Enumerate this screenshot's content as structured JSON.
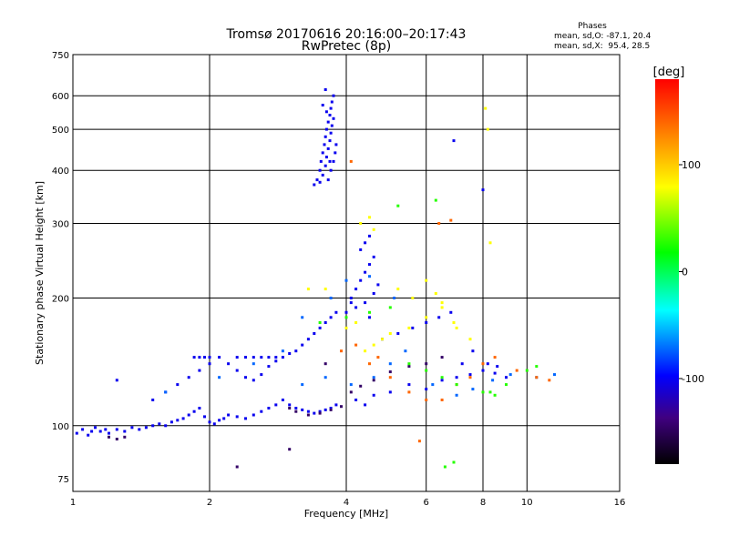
{
  "chart_data": {
    "type": "scatter",
    "title": "Tromsø 20170616 20:16:00–20:17:43",
    "subtitle": "RwPretec (8p)",
    "xlabel": "Frequency [MHz]",
    "ylabel": "Stationary phase Virtual Height [km]",
    "x_scale": "log",
    "y_scale": "log",
    "xlim": [
      1,
      16
    ],
    "ylim": [
      70,
      750
    ],
    "x_ticks": [
      1,
      2,
      4,
      6,
      8,
      10,
      16
    ],
    "y_ticks": [
      75,
      100,
      200,
      300,
      400,
      500,
      600,
      750
    ],
    "grid": true,
    "stats": {
      "heading": "Phases",
      "line_o": "mean, sd,O: -87.1, 20.4",
      "line_x": "mean, sd,X:  95.4, 28.5"
    },
    "colorbar": {
      "label": "[deg]",
      "range": [
        -180,
        180
      ],
      "ticks": [
        100,
        0,
        -100
      ],
      "colors": [
        "#ff0000",
        "#ff8000",
        "#ffff00",
        "#00ff00",
        "#00ffff",
        "#0000ff",
        "#400080",
        "#000000"
      ]
    },
    "series": [
      {
        "phase": -95,
        "points": [
          [
            1.02,
            96
          ],
          [
            1.05,
            98
          ],
          [
            1.08,
            95
          ],
          [
            1.1,
            97
          ],
          [
            1.12,
            99
          ],
          [
            1.15,
            97
          ],
          [
            1.18,
            98
          ],
          [
            1.2,
            96
          ],
          [
            1.25,
            98
          ],
          [
            1.3,
            97
          ],
          [
            1.35,
            99
          ],
          [
            1.4,
            98
          ],
          [
            1.45,
            99
          ],
          [
            1.5,
            100
          ],
          [
            1.55,
            101
          ],
          [
            1.6,
            100
          ],
          [
            1.65,
            102
          ],
          [
            1.7,
            103
          ],
          [
            1.75,
            104
          ],
          [
            1.8,
            106
          ],
          [
            1.85,
            108
          ],
          [
            1.9,
            110
          ],
          [
            1.95,
            105
          ],
          [
            2.0,
            102
          ],
          [
            2.05,
            101
          ],
          [
            2.1,
            103
          ],
          [
            2.15,
            104
          ],
          [
            2.2,
            106
          ],
          [
            2.3,
            105
          ],
          [
            2.4,
            104
          ],
          [
            2.5,
            106
          ],
          [
            2.6,
            108
          ],
          [
            2.7,
            110
          ],
          [
            2.8,
            112
          ],
          [
            2.9,
            115
          ],
          [
            3.0,
            112
          ],
          [
            3.1,
            110
          ],
          [
            3.2,
            109
          ],
          [
            3.3,
            108
          ],
          [
            3.4,
            107
          ],
          [
            3.5,
            108
          ],
          [
            3.6,
            109
          ],
          [
            3.7,
            110
          ],
          [
            3.8,
            112
          ],
          [
            1.5,
            115
          ],
          [
            1.6,
            120
          ],
          [
            1.7,
            125
          ],
          [
            1.8,
            130
          ],
          [
            1.9,
            135
          ],
          [
            2.0,
            140
          ],
          [
            2.1,
            145
          ],
          [
            2.2,
            140
          ],
          [
            2.3,
            135
          ],
          [
            2.4,
            130
          ],
          [
            2.5,
            128
          ],
          [
            2.6,
            132
          ],
          [
            2.7,
            138
          ],
          [
            2.8,
            142
          ],
          [
            2.9,
            145
          ],
          [
            3.0,
            148
          ],
          [
            3.1,
            150
          ],
          [
            3.2,
            155
          ],
          [
            3.3,
            160
          ],
          [
            3.4,
            165
          ],
          [
            3.5,
            170
          ],
          [
            3.6,
            175
          ],
          [
            3.7,
            180
          ],
          [
            3.8,
            185
          ],
          [
            1.85,
            145
          ],
          [
            1.9,
            145
          ],
          [
            1.95,
            145
          ],
          [
            2.0,
            145
          ],
          [
            2.3,
            145
          ],
          [
            2.4,
            145
          ],
          [
            2.5,
            145
          ],
          [
            2.6,
            145
          ],
          [
            2.7,
            145
          ],
          [
            2.8,
            145
          ],
          [
            1.25,
            128
          ],
          [
            3.45,
            380
          ],
          [
            3.5,
            400
          ],
          [
            3.52,
            420
          ],
          [
            3.55,
            440
          ],
          [
            3.58,
            460
          ],
          [
            3.6,
            480
          ],
          [
            3.62,
            500
          ],
          [
            3.65,
            520
          ],
          [
            3.68,
            540
          ],
          [
            3.7,
            560
          ],
          [
            3.72,
            580
          ],
          [
            3.75,
            600
          ],
          [
            3.5,
            375
          ],
          [
            3.55,
            390
          ],
          [
            3.6,
            410
          ],
          [
            3.62,
            430
          ],
          [
            3.65,
            450
          ],
          [
            3.68,
            470
          ],
          [
            3.7,
            490
          ],
          [
            3.72,
            510
          ],
          [
            3.75,
            530
          ],
          [
            3.4,
            370
          ],
          [
            3.65,
            380
          ],
          [
            3.7,
            400
          ],
          [
            3.75,
            420
          ],
          [
            3.78,
            440
          ],
          [
            3.8,
            460
          ],
          [
            3.6,
            620
          ],
          [
            3.55,
            570
          ],
          [
            3.62,
            550
          ],
          [
            3.68,
            420
          ],
          [
            4.1,
            200
          ],
          [
            4.2,
            210
          ],
          [
            4.3,
            220
          ],
          [
            4.4,
            230
          ],
          [
            4.5,
            240
          ],
          [
            4.6,
            250
          ],
          [
            4.3,
            260
          ],
          [
            4.4,
            270
          ],
          [
            4.5,
            280
          ],
          [
            4.2,
            190
          ],
          [
            4.4,
            195
          ],
          [
            4.6,
            205
          ],
          [
            4.7,
            215
          ],
          [
            4.0,
            185
          ],
          [
            4.1,
            195
          ],
          [
            4.5,
            180
          ],
          [
            4.2,
            115
          ],
          [
            4.4,
            112
          ],
          [
            4.6,
            118
          ],
          [
            5.0,
            120
          ],
          [
            5.5,
            125
          ],
          [
            6.0,
            122
          ],
          [
            6.5,
            128
          ],
          [
            7.0,
            130
          ],
          [
            7.5,
            132
          ],
          [
            8.0,
            135
          ],
          [
            8.5,
            133
          ],
          [
            9.0,
            130
          ],
          [
            4.8,
            160
          ],
          [
            5.2,
            165
          ],
          [
            5.6,
            170
          ],
          [
            6.0,
            175
          ],
          [
            6.4,
            180
          ],
          [
            6.8,
            185
          ],
          [
            7.2,
            140
          ],
          [
            7.6,
            150
          ],
          [
            8.2,
            140
          ],
          [
            8.6,
            138
          ],
          [
            6.9,
            470
          ],
          [
            8.0,
            360
          ]
        ]
      },
      {
        "phase": -60,
        "points": [
          [
            1.6,
            120
          ],
          [
            2.1,
            130
          ],
          [
            2.5,
            140
          ],
          [
            2.9,
            150
          ],
          [
            3.2,
            125
          ],
          [
            3.6,
            130
          ],
          [
            4.1,
            125
          ],
          [
            4.6,
            130
          ],
          [
            5.0,
            140
          ],
          [
            5.4,
            150
          ],
          [
            6.2,
            125
          ],
          [
            7.0,
            118
          ],
          [
            7.6,
            122
          ],
          [
            8.4,
            128
          ],
          [
            9.2,
            132
          ],
          [
            10.5,
            130
          ],
          [
            11.5,
            132
          ],
          [
            3.7,
            200
          ],
          [
            4.0,
            220
          ],
          [
            4.5,
            225
          ],
          [
            5.1,
            200
          ],
          [
            3.2,
            180
          ]
        ]
      },
      {
        "phase": -140,
        "points": [
          [
            1.2,
            94
          ],
          [
            1.25,
            93
          ],
          [
            1.3,
            94
          ],
          [
            3.0,
            110
          ],
          [
            3.1,
            108
          ],
          [
            3.3,
            106
          ],
          [
            3.5,
            107
          ],
          [
            3.7,
            109
          ],
          [
            3.9,
            111
          ],
          [
            4.1,
            120
          ],
          [
            4.3,
            124
          ],
          [
            4.6,
            128
          ],
          [
            5.0,
            134
          ],
          [
            5.5,
            138
          ],
          [
            6.0,
            140
          ],
          [
            6.5,
            145
          ],
          [
            3.0,
            88
          ],
          [
            2.3,
            80
          ],
          [
            3.6,
            140
          ]
        ]
      },
      {
        "phase": 100,
        "points": [
          [
            4.3,
            300
          ],
          [
            4.5,
            310
          ],
          [
            4.6,
            290
          ],
          [
            4.4,
            150
          ],
          [
            4.6,
            155
          ],
          [
            4.8,
            160
          ],
          [
            5.0,
            165
          ],
          [
            5.5,
            170
          ],
          [
            6.0,
            180
          ],
          [
            6.5,
            190
          ],
          [
            6.9,
            175
          ],
          [
            7.0,
            170
          ],
          [
            7.5,
            160
          ],
          [
            8.1,
            560
          ],
          [
            8.2,
            500
          ],
          [
            8.3,
            270
          ],
          [
            5.2,
            210
          ],
          [
            5.6,
            200
          ],
          [
            6.0,
            220
          ],
          [
            6.3,
            205
          ],
          [
            6.5,
            195
          ],
          [
            3.3,
            210
          ],
          [
            3.6,
            210
          ],
          [
            4.0,
            170
          ],
          [
            4.2,
            175
          ]
        ]
      },
      {
        "phase": 140,
        "points": [
          [
            4.5,
            140
          ],
          [
            4.7,
            145
          ],
          [
            5.0,
            130
          ],
          [
            5.5,
            120
          ],
          [
            6.0,
            115
          ],
          [
            6.5,
            115
          ],
          [
            7.0,
            125
          ],
          [
            7.5,
            130
          ],
          [
            8.0,
            140
          ],
          [
            8.5,
            145
          ],
          [
            9.5,
            135
          ],
          [
            10.5,
            130
          ],
          [
            11.2,
            128
          ],
          [
            3.9,
            150
          ],
          [
            4.2,
            155
          ],
          [
            6.4,
            300
          ],
          [
            6.8,
            305
          ],
          [
            4.1,
            420
          ],
          [
            5.8,
            92
          ]
        ]
      },
      {
        "phase": 40,
        "points": [
          [
            3.5,
            175
          ],
          [
            4.0,
            180
          ],
          [
            4.5,
            185
          ],
          [
            5.0,
            190
          ],
          [
            5.5,
            140
          ],
          [
            6.0,
            135
          ],
          [
            6.5,
            130
          ],
          [
            7.0,
            125
          ],
          [
            8.0,
            120
          ],
          [
            8.5,
            118
          ],
          [
            9.0,
            125
          ],
          [
            5.2,
            330
          ],
          [
            6.3,
            340
          ],
          [
            6.6,
            80
          ],
          [
            6.9,
            82
          ],
          [
            8.3,
            120
          ],
          [
            10.0,
            135
          ],
          [
            10.5,
            138
          ]
        ]
      }
    ]
  }
}
